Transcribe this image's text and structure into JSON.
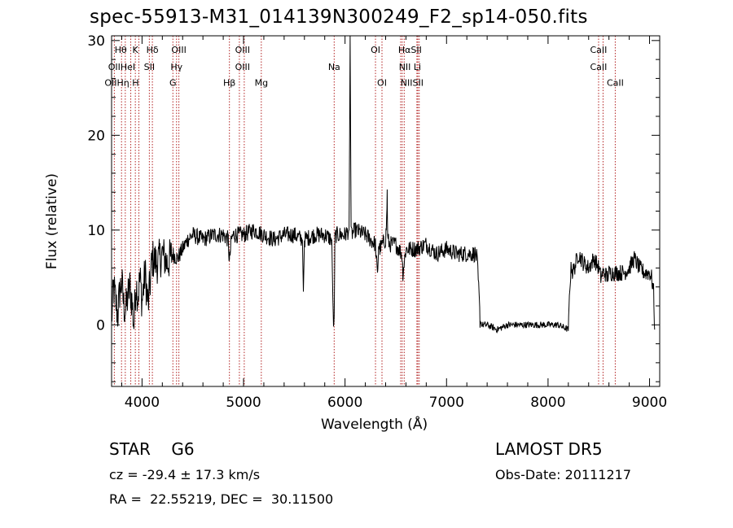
{
  "header": {
    "title": "spec-55913-M31_014139N300249_F2_sp14-050.fits"
  },
  "info": {
    "classification": "STAR    G6",
    "cz": "cz = -29.4 ± 17.3 km/s",
    "radec": "RA =  22.55219, DEC =  30.11500",
    "survey": "LAMOST DR5",
    "obs_date": "Obs-Date: 20111217"
  },
  "chart_data": {
    "type": "line",
    "title": "spec-55913-M31_014139N300249_F2_sp14-050.fits",
    "xlabel": "Wavelength (Å)",
    "ylabel": "Flux (relative)",
    "xlim": [
      3700,
      9100
    ],
    "ylim": [
      -6.5,
      30.5
    ],
    "xticks": [
      4000,
      5000,
      6000,
      7000,
      8000,
      9000
    ],
    "yticks": [
      0,
      10,
      20,
      30
    ],
    "grid": false,
    "colors": {
      "spectrum": "#000000",
      "line_markers": "#b22222",
      "axes": "#000000"
    },
    "series": [
      {
        "x": [
          3700,
          3720,
          3740,
          3760,
          3780,
          3800,
          3820,
          3840,
          3860,
          3880,
          3900,
          3920,
          3940,
          3960,
          3980,
          4000,
          4030,
          4060,
          4100,
          4150,
          4200,
          4250,
          4300,
          4350,
          4400,
          4450,
          4500,
          4600,
          4700,
          4800,
          4850,
          4860,
          4880,
          4900,
          5000,
          5100,
          5200,
          5300,
          5400,
          5500,
          5580,
          5590,
          5600,
          5700,
          5800,
          5870,
          5880,
          5890,
          5895,
          5900,
          5910,
          5950,
          6000,
          6040,
          6050,
          6060,
          6100,
          6200,
          6300,
          6320,
          6330,
          6340,
          6400,
          6410,
          6415,
          6420,
          6440,
          6500,
          6560,
          6570,
          6600,
          6700,
          6800,
          6900,
          7000,
          7100,
          7200,
          7280,
          7300,
          7320,
          7330,
          7350,
          7400,
          7500,
          7600,
          7700,
          7800,
          7900,
          8000,
          8100,
          8200,
          8210,
          8230,
          8240,
          8260,
          8300,
          8350,
          8400,
          8450,
          8500,
          8520,
          8540,
          8560,
          8580,
          8600,
          8650,
          8700,
          8750,
          8800,
          8850,
          8900,
          8950,
          9000,
          9020,
          9040,
          9050
        ],
        "values": [
          0.5,
          4.0,
          2.5,
          1.0,
          3.5,
          4.5,
          2.0,
          1.5,
          3.0,
          4.0,
          2.5,
          0.0,
          4.5,
          3.0,
          5.0,
          2.5,
          5.5,
          2.0,
          7.0,
          6.5,
          7.5,
          6.5,
          7.5,
          7.0,
          8.0,
          9.0,
          9.5,
          9.0,
          9.5,
          9.5,
          9.0,
          6.5,
          9.0,
          9.5,
          9.5,
          10.0,
          9.5,
          9.0,
          9.5,
          9.5,
          9.0,
          3.5,
          9.0,
          9.5,
          9.5,
          9.0,
          2.0,
          -0.5,
          3.0,
          9.0,
          9.5,
          9.5,
          9.5,
          10.0,
          30.5,
          9.5,
          10.0,
          9.5,
          8.5,
          5.0,
          8.5,
          8.0,
          9.0,
          11.0,
          14.0,
          9.0,
          8.5,
          8.5,
          7.5,
          5.5,
          8.0,
          8.0,
          8.5,
          7.5,
          8.0,
          7.5,
          7.5,
          7.5,
          7.0,
          3.0,
          0.5,
          0.0,
          0.0,
          -0.5,
          0.0,
          0.0,
          0.0,
          0.0,
          0.0,
          0.0,
          -0.5,
          3.0,
          6.5,
          5.5,
          6.0,
          7.5,
          6.5,
          6.0,
          7.0,
          6.0,
          5.0,
          5.5,
          5.5,
          5.0,
          5.5,
          5.5,
          5.5,
          5.5,
          6.0,
          7.0,
          6.0,
          5.5,
          5.5,
          5.0,
          3.5,
          -0.5
        ]
      }
    ],
    "line_markers": [
      {
        "name": "Hθ",
        "x": 3798
      },
      {
        "name": "Hη",
        "x": 3835
      },
      {
        "name": "K",
        "x": 3934
      },
      {
        "name": "H",
        "x": 3969
      },
      {
        "name": "OII",
        "x": 3727
      },
      {
        "name": "HeI",
        "x": 3889
      },
      {
        "name": "SII",
        "x": 4072
      },
      {
        "name": "Hδ",
        "x": 4102
      },
      {
        "name": "OIII",
        "x": 4363
      },
      {
        "name": "Hγ",
        "x": 4340
      },
      {
        "name": "G",
        "x": 4304
      },
      {
        "name": "Hβ",
        "x": 4861
      },
      {
        "name": "OIII",
        "x": 4959
      },
      {
        "name": "OIII",
        "x": 5007
      },
      {
        "name": "Mg",
        "x": 5175
      },
      {
        "name": "Na",
        "x": 5893
      },
      {
        "name": "OI",
        "x": 6300
      },
      {
        "name": "OI",
        "x": 6364
      },
      {
        "name": "NII",
        "x": 6548
      },
      {
        "name": "Hα",
        "x": 6563
      },
      {
        "name": "NII",
        "x": 6583
      },
      {
        "name": "Li",
        "x": 6708
      },
      {
        "name": "SII",
        "x": 6717
      },
      {
        "name": "SII",
        "x": 6731
      },
      {
        "name": "CaII",
        "x": 8498
      },
      {
        "name": "CaII",
        "x": 8542
      },
      {
        "name": "CaII",
        "x": 8662
      }
    ],
    "line_labels": [
      {
        "text": "Hθ",
        "x": 3790,
        "y": 28.7
      },
      {
        "text": "K",
        "x": 3934,
        "y": 28.7
      },
      {
        "text": "Hδ",
        "x": 4102,
        "y": 28.7
      },
      {
        "text": "OIII",
        "x": 4363,
        "y": 28.7
      },
      {
        "text": "OIII",
        "x": 4990,
        "y": 28.7
      },
      {
        "text": "OI",
        "x": 6300,
        "y": 28.7
      },
      {
        "text": "HαSII",
        "x": 6640,
        "y": 28.7
      },
      {
        "text": "OIIHeI",
        "x": 3800,
        "y": 26.9
      },
      {
        "text": "SII",
        "x": 4072,
        "y": 26.9
      },
      {
        "text": "Hγ",
        "x": 4340,
        "y": 26.9
      },
      {
        "text": "OIII",
        "x": 4990,
        "y": 26.9
      },
      {
        "text": "Na",
        "x": 5893,
        "y": 26.9
      },
      {
        "text": "NII Li",
        "x": 6640,
        "y": 26.9
      },
      {
        "text": "CaII",
        "x": 8498,
        "y": 26.9
      },
      {
        "text": "CaII",
        "x": 8498,
        "y": 28.7
      },
      {
        "text": "OIIHη H",
        "x": 3800,
        "y": 25.2
      },
      {
        "text": "G",
        "x": 4304,
        "y": 25.2
      },
      {
        "text": "Hβ",
        "x": 4861,
        "y": 25.2
      },
      {
        "text": "Mg",
        "x": 5175,
        "y": 25.2
      },
      {
        "text": "OI",
        "x": 6364,
        "y": 25.2
      },
      {
        "text": "NIISII",
        "x": 6660,
        "y": 25.2
      },
      {
        "text": "CaII",
        "x": 8662,
        "y": 25.2
      }
    ]
  }
}
